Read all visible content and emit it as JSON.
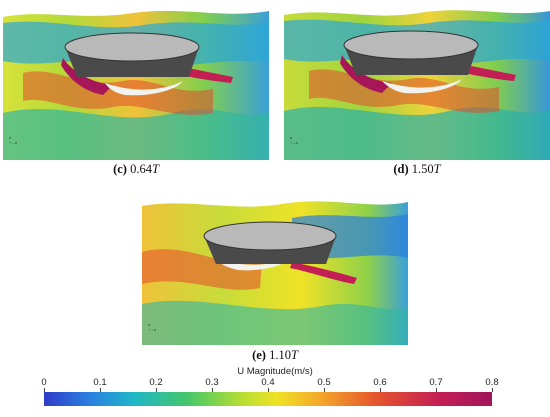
{
  "panels": [
    {
      "id": "c",
      "letter": "(c)",
      "time_value": "0.64",
      "time_unit": "T"
    },
    {
      "id": "d",
      "letter": "(d)",
      "time_value": "1.50",
      "time_unit": "T"
    },
    {
      "id": "e",
      "letter": "(e)",
      "time_value": "1.10",
      "time_unit": "T"
    }
  ],
  "colorbar": {
    "title": "U Magnitude(m/s)",
    "ticks": [
      "0",
      "0.1",
      "0.2",
      "0.3",
      "0.4",
      "0.5",
      "0.6",
      "0.7",
      "0.8"
    ],
    "range": [
      0,
      0.8
    ],
    "colors": [
      "#2f3cc8",
      "#2a7fe0",
      "#1fb6c8",
      "#43c76a",
      "#b6dd33",
      "#efe226",
      "#f3a62a",
      "#e5552d",
      "#c41f54",
      "#a0155a"
    ]
  }
}
